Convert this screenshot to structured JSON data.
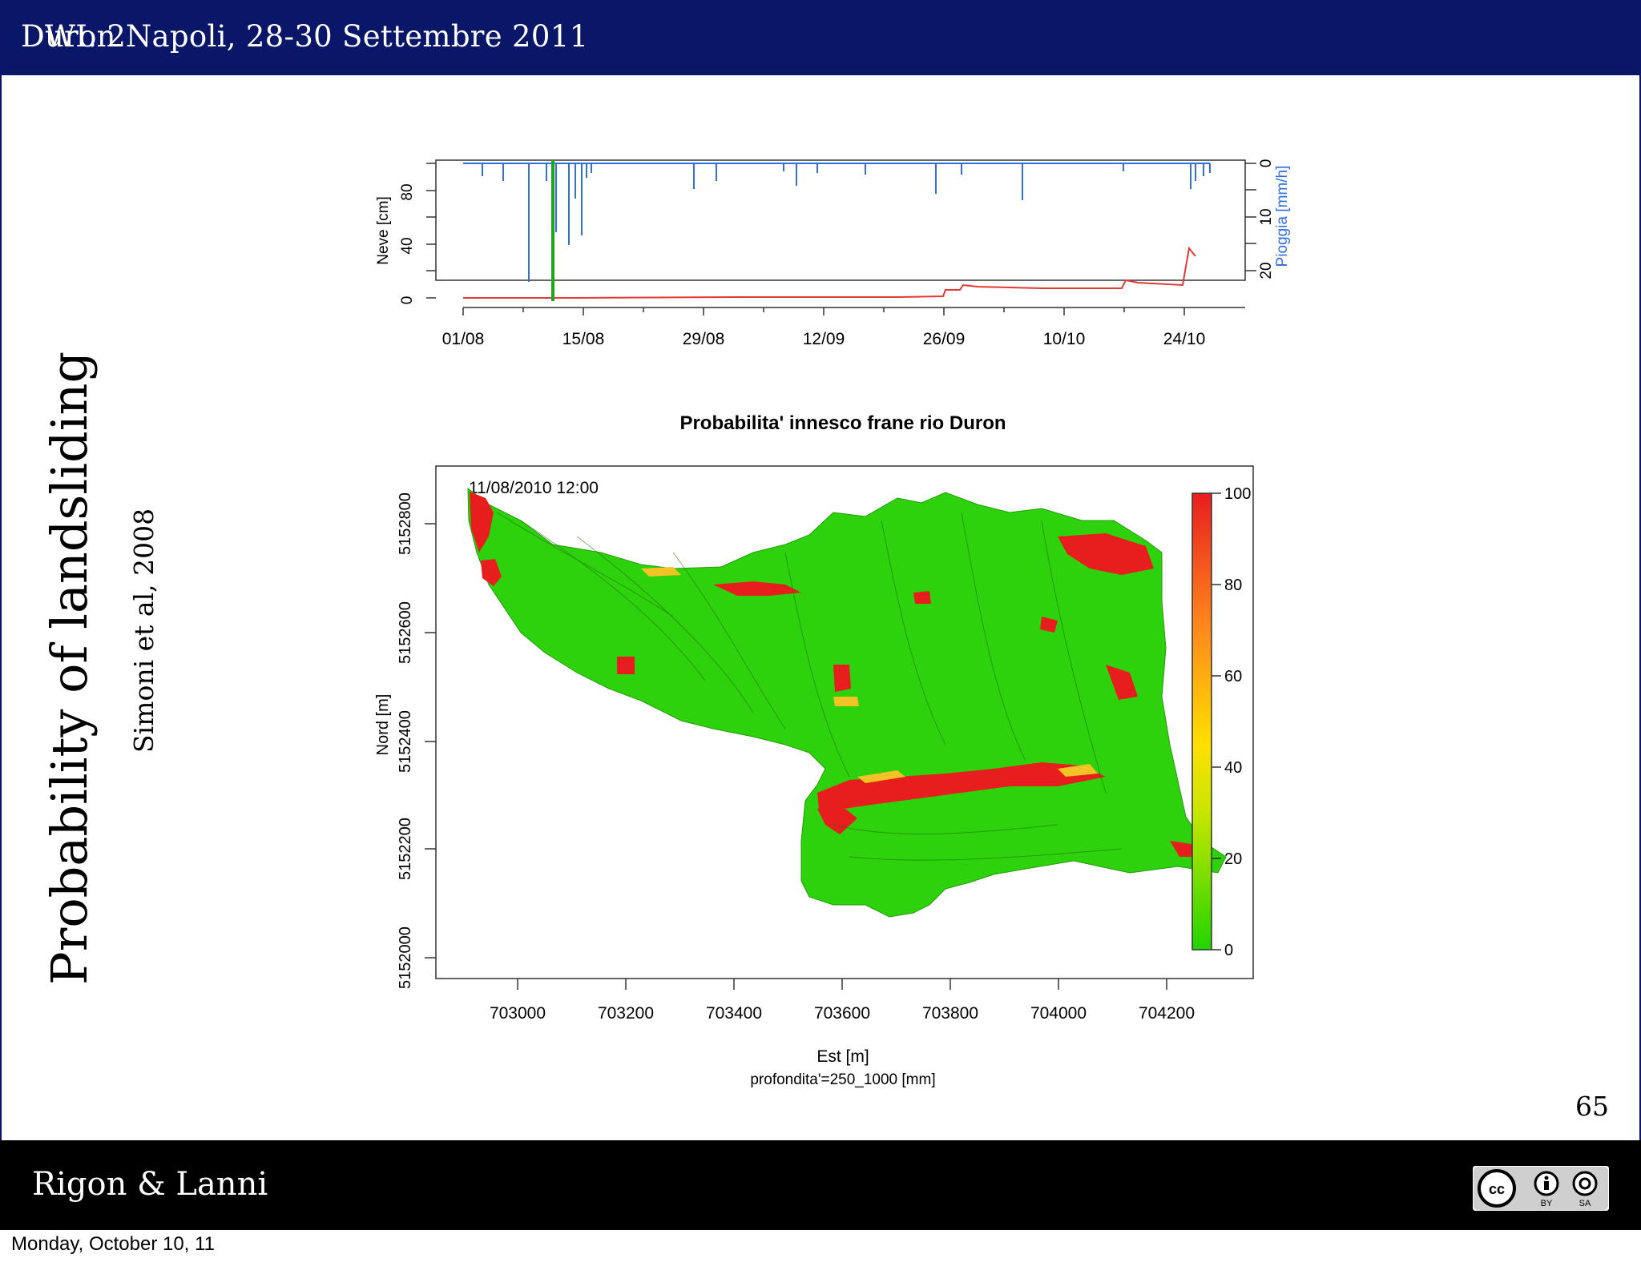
{
  "header": {
    "overlay_text": "DWI. 2",
    "subtitle_text": "Duron Napoli, 28-30 Settembre 2011"
  },
  "slide": {
    "title": "Probability of landsliding",
    "citation": "Simoni et al, 2008",
    "page_number": "65"
  },
  "top_plot": {
    "left_axis_label": "Neve [cm]",
    "right_axis_label": "Pioggia [mm/h]",
    "left_ticks": [
      "0",
      "40",
      "80"
    ],
    "right_ticks": [
      "0",
      "10",
      "20"
    ],
    "x_ticks": [
      "01/08",
      "15/08",
      "29/08",
      "12/09",
      "26/09",
      "10/10",
      "24/10"
    ],
    "colors": {
      "snow": "#e53935",
      "rain": "#2f6fe0",
      "marker": "#21a321"
    }
  },
  "map_plot": {
    "title": "Probabilita' innesco frane rio Duron",
    "timestamp": "11/08/2010 12:00",
    "y_axis_label": "Nord [m]",
    "y_ticks": [
      "5152000",
      "5152200",
      "5152400",
      "5152600",
      "5152800"
    ],
    "x_axis_label": "Est [m]",
    "x_ticks": [
      "703000",
      "703200",
      "703400",
      "703600",
      "703800",
      "704000",
      "704200"
    ],
    "depth_note": "profondita'=250_1000 [mm]",
    "colorbar_ticks": [
      "0",
      "20",
      "40",
      "60",
      "80",
      "100"
    ],
    "colors": {
      "low": "#22d400",
      "mid": "#ffe000",
      "high": "#e81e1e"
    }
  },
  "footer": {
    "authors": "Rigon & Lanni",
    "license_icon": "cc-by-sa-icon"
  },
  "stamp": "Monday, October 10, 11"
}
